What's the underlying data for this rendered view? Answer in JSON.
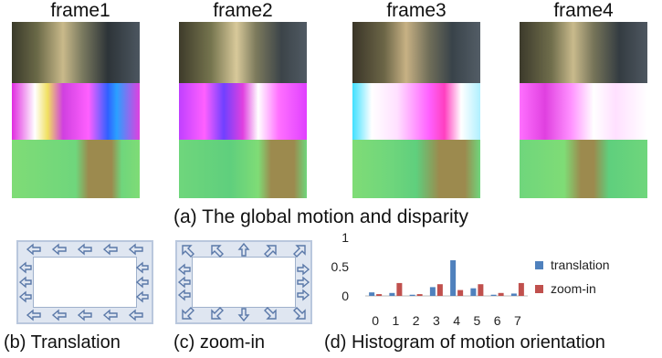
{
  "frames": [
    {
      "label": "frame1"
    },
    {
      "label": "frame2"
    },
    {
      "label": "frame3"
    },
    {
      "label": "frame4"
    }
  ],
  "captions": {
    "a": "(a) The global motion and disparity",
    "b": "(b) Translation",
    "c": "(c) zoom-in",
    "d": "(d) Histogram of motion orientation"
  },
  "colors": {
    "translation": "#4f81bd",
    "zoom_in": "#c0504d",
    "disparity_green_light": "#7fdc76",
    "disparity_green_mid": "#5fcf7d",
    "disparity_brown": "#9c8a4e"
  },
  "chart_data": {
    "type": "bar",
    "categories": [
      "0",
      "1",
      "2",
      "3",
      "4",
      "5",
      "6",
      "7"
    ],
    "series": [
      {
        "name": "translation",
        "values": [
          0.06,
          0.05,
          0.02,
          0.15,
          0.61,
          0.13,
          0.02,
          0.04
        ]
      },
      {
        "name": "zoom-in",
        "values": [
          0.03,
          0.22,
          0.03,
          0.2,
          0.1,
          0.2,
          0.05,
          0.22
        ]
      }
    ],
    "yticks": [
      "1",
      "0.5",
      "0"
    ],
    "ylim": [
      0,
      1
    ],
    "legend": "right"
  }
}
